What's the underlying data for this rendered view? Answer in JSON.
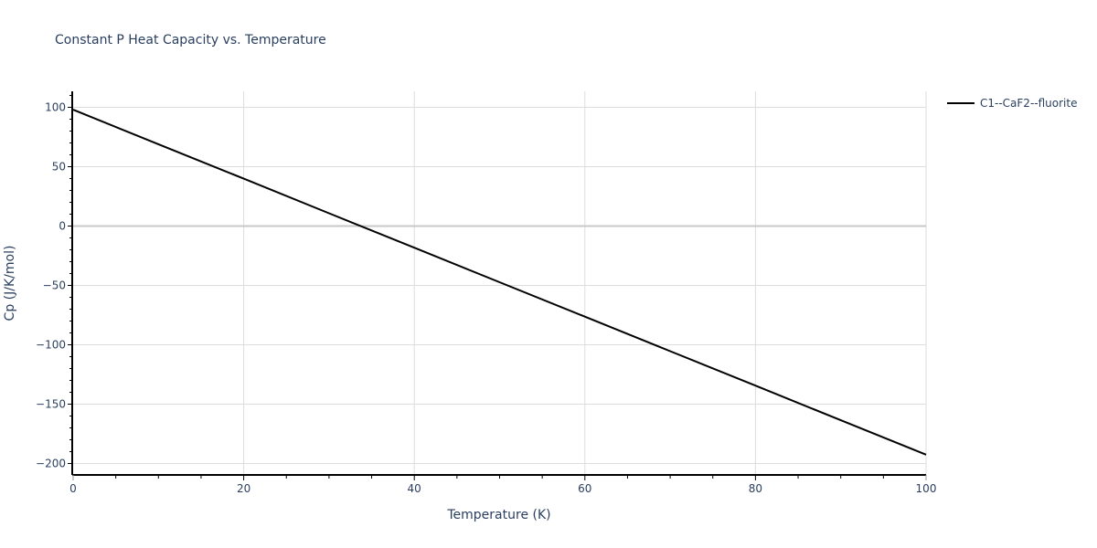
{
  "chart_data": {
    "type": "line",
    "title": "Constant P Heat Capacity vs. Temperature",
    "xlabel": "Temperature (K)",
    "ylabel": "Cp (J/K/mol)",
    "xlim": [
      0,
      100
    ],
    "ylim": [
      -208,
      112
    ],
    "x_ticks": [
      0,
      20,
      40,
      60,
      80,
      100
    ],
    "y_ticks": [
      100,
      50,
      0,
      -50,
      -100,
      -150,
      -200
    ],
    "x_tick_labels": [
      "0",
      "20",
      "40",
      "60",
      "80",
      "100"
    ],
    "y_tick_labels": [
      "100",
      "50",
      "0",
      "−50",
      "−100",
      "−150",
      "−200"
    ],
    "grid": true,
    "legend_position": "right-top",
    "series": [
      {
        "name": "C1--CaF2--fluorite",
        "color": "#000000",
        "x": [
          0,
          10,
          20,
          30,
          40,
          50,
          60,
          70,
          80,
          90,
          100
        ],
        "values": [
          98,
          68.9,
          39.9,
          10.8,
          -18.2,
          -47.3,
          -76.3,
          -105.4,
          -134.4,
          -163.5,
          -192.5
        ]
      }
    ]
  },
  "title": "Constant P Heat Capacity vs. Temperature",
  "legend": {
    "label": "C1--CaF2--fluorite"
  },
  "axes": {
    "x_title": "Temperature (K)",
    "y_title": "Cp (J/K/mol)"
  },
  "colors": {
    "text": "#2a3f5f",
    "grid": "#dddddd",
    "zero_line": "#c8c8c8",
    "axis": "#000000",
    "series": "#000000"
  }
}
